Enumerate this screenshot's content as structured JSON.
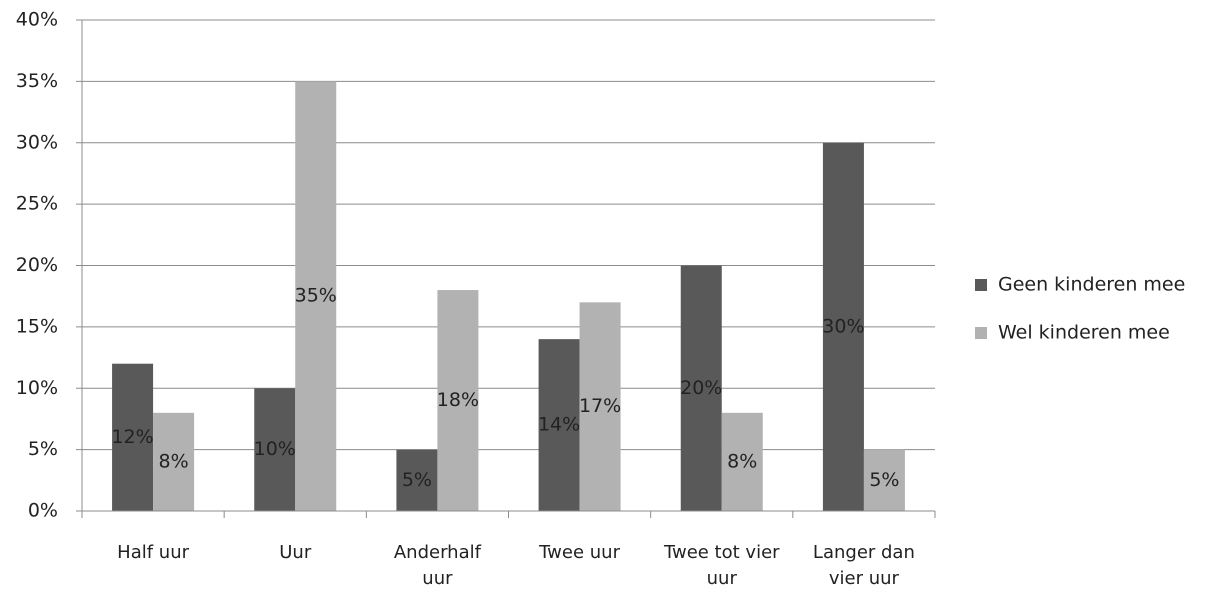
{
  "chart_data": {
    "type": "bar",
    "categories": [
      "Half uur",
      "Uur",
      "Anderhalf uur",
      "Twee uur",
      "Twee tot vier uur",
      "Langer dan vier uur"
    ],
    "series": [
      {
        "name": "Geen kinderen mee",
        "color": "#595959",
        "values": [
          12,
          10,
          5,
          14,
          20,
          30
        ],
        "value_labels": [
          "12%",
          "10%",
          "5%",
          "14%",
          "20%",
          "30%"
        ]
      },
      {
        "name": "Wel kinderen mee",
        "color": "#b2b2b2",
        "values": [
          8,
          35,
          18,
          17,
          8,
          5
        ],
        "value_labels": [
          "8%",
          "35%",
          "18%",
          "17%",
          "8%",
          "5%"
        ]
      }
    ],
    "ylim": [
      0,
      40
    ],
    "yticks": [
      {
        "value": 0,
        "label": "0%"
      },
      {
        "value": 5,
        "label": "5%"
      },
      {
        "value": 10,
        "label": "10%"
      },
      {
        "value": 15,
        "label": "15%"
      },
      {
        "value": 20,
        "label": "20%"
      },
      {
        "value": 25,
        "label": "25%"
      },
      {
        "value": 30,
        "label": "30%"
      },
      {
        "value": 35,
        "label": "35%"
      },
      {
        "value": 40,
        "label": "40%"
      }
    ],
    "grid": true,
    "legend": "right"
  }
}
